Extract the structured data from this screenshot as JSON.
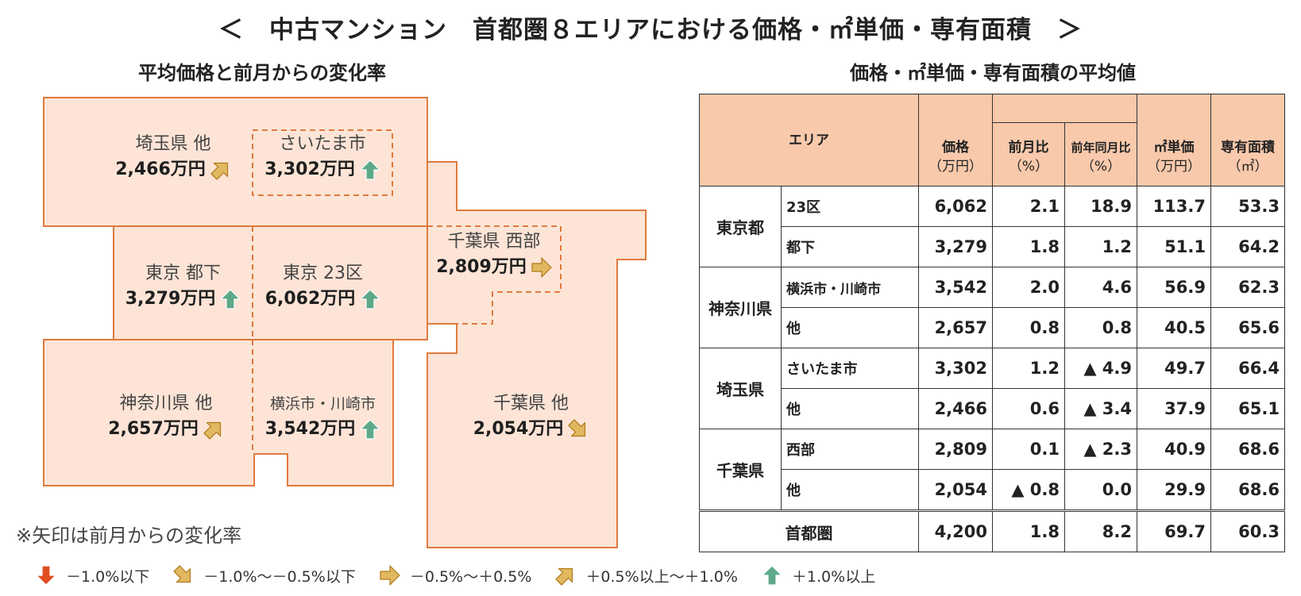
{
  "title": "＜　中古マンション　首都圏８エリアにおける価格・㎡単価・専有面積　＞",
  "map_subtitle": "平均価格と前月からの変化率",
  "table_subtitle": "価格・㎡単価・専有面積の平均値",
  "colors": {
    "region_fill": "#fde4d6",
    "region_border": "#e07a3e",
    "header_fill": "#f8c9ab",
    "arrow_down": "#e04d1f",
    "arrow_down_slight": "#e0b860",
    "arrow_flat": "#e0b860",
    "arrow_up_slight": "#e0b860",
    "arrow_up": "#5ea98a"
  },
  "map": {
    "regions": [
      {
        "key": "saitama_other",
        "area": "埼玉県 他",
        "price": "2,466万円",
        "trend": "up-slight"
      },
      {
        "key": "saitama_city",
        "area": "さいたま市",
        "price": "3,302万円",
        "trend": "up"
      },
      {
        "key": "tokyo_other",
        "area": "東京 都下",
        "price": "3,279万円",
        "trend": "up"
      },
      {
        "key": "tokyo_23",
        "area": "東京 23区",
        "price": "6,062万円",
        "trend": "up"
      },
      {
        "key": "chiba_west",
        "area": "千葉県 西部",
        "price": "2,809万円",
        "trend": "flat"
      },
      {
        "key": "kanagawa_other",
        "area": "神奈川県 他",
        "price": "2,657万円",
        "trend": "up-slight"
      },
      {
        "key": "yokohama_kawasaki",
        "area": "横浜市・川崎市",
        "price": "3,542万円",
        "trend": "up"
      },
      {
        "key": "chiba_other",
        "area": "千葉県 他",
        "price": "2,054万円",
        "trend": "down-slight"
      }
    ]
  },
  "table": {
    "headers": {
      "area": "エリア",
      "price": "価格",
      "price_unit": "（万円）",
      "mom": "前月比",
      "mom_unit": "（%）",
      "yoy": "前年同月比",
      "yoy_unit": "（%）",
      "unit_price": "㎡単価",
      "unit_price_unit": "（万円）",
      "floor_area": "専有面積",
      "floor_area_unit": "（㎡）"
    },
    "groups": [
      {
        "pref": "東京都",
        "rows": [
          {
            "sub": "23区",
            "price": "6,062",
            "mom": "2.1",
            "yoy": "18.9",
            "unit_price": "113.7",
            "floor_area": "53.3"
          },
          {
            "sub": "都下",
            "price": "3,279",
            "mom": "1.8",
            "yoy": "1.2",
            "unit_price": "51.1",
            "floor_area": "64.2"
          }
        ]
      },
      {
        "pref": "神奈川県",
        "rows": [
          {
            "sub": "横浜市・川崎市",
            "price": "3,542",
            "mom": "2.0",
            "yoy": "4.6",
            "unit_price": "56.9",
            "floor_area": "62.3"
          },
          {
            "sub": "他",
            "price": "2,657",
            "mom": "0.8",
            "yoy": "0.8",
            "unit_price": "40.5",
            "floor_area": "65.6"
          }
        ]
      },
      {
        "pref": "埼玉県",
        "rows": [
          {
            "sub": "さいたま市",
            "price": "3,302",
            "mom": "1.2",
            "yoy": "▲ 4.9",
            "unit_price": "49.7",
            "floor_area": "66.4"
          },
          {
            "sub": "他",
            "price": "2,466",
            "mom": "0.6",
            "yoy": "▲ 3.4",
            "unit_price": "37.9",
            "floor_area": "65.1"
          }
        ]
      },
      {
        "pref": "千葉県",
        "rows": [
          {
            "sub": "西部",
            "price": "2,809",
            "mom": "0.1",
            "yoy": "▲ 2.3",
            "unit_price": "40.9",
            "floor_area": "68.6"
          },
          {
            "sub": "他",
            "price": "2,054",
            "mom": "▲ 0.8",
            "yoy": "0.0",
            "unit_price": "29.9",
            "floor_area": "68.6"
          }
        ]
      }
    ],
    "total": {
      "label": "首都圏",
      "price": "4,200",
      "mom": "1.8",
      "yoy": "8.2",
      "unit_price": "69.7",
      "floor_area": "60.3"
    }
  },
  "note": "※矢印は前月からの変化率",
  "legend": [
    {
      "trend": "down",
      "label": "－1.0%以下"
    },
    {
      "trend": "down-slight",
      "label": "－1.0%～－0.5%以下"
    },
    {
      "trend": "flat",
      "label": "－0.5%～＋0.5%"
    },
    {
      "trend": "up-slight",
      "label": "＋0.5%以上～＋1.0%"
    },
    {
      "trend": "up",
      "label": "＋1.0%以上"
    }
  ],
  "chart_data": {
    "type": "table",
    "title": "＜　中古マンション　首都圏８エリアにおける価格・㎡単価・専有面積　＞",
    "columns": [
      "価格（万円）",
      "前月比（%）",
      "前年同月比（%）",
      "㎡単価（万円）",
      "専有面積（㎡）"
    ],
    "rows": [
      {
        "area": "東京都 23区",
        "values": [
          6062,
          2.1,
          18.9,
          113.7,
          53.3
        ]
      },
      {
        "area": "東京都 都下",
        "values": [
          3279,
          1.8,
          1.2,
          51.1,
          64.2
        ]
      },
      {
        "area": "神奈川県 横浜市・川崎市",
        "values": [
          3542,
          2.0,
          4.6,
          56.9,
          62.3
        ]
      },
      {
        "area": "神奈川県 他",
        "values": [
          2657,
          0.8,
          0.8,
          40.5,
          65.6
        ]
      },
      {
        "area": "埼玉県 さいたま市",
        "values": [
          3302,
          1.2,
          -4.9,
          49.7,
          66.4
        ]
      },
      {
        "area": "埼玉県 他",
        "values": [
          2466,
          0.6,
          -3.4,
          37.9,
          65.1
        ]
      },
      {
        "area": "千葉県 西部",
        "values": [
          2809,
          0.1,
          -2.3,
          40.9,
          68.6
        ]
      },
      {
        "area": "千葉県 他",
        "values": [
          2054,
          -0.8,
          0.0,
          29.9,
          68.6
        ]
      },
      {
        "area": "首都圏",
        "values": [
          4200,
          1.8,
          8.2,
          69.7,
          60.3
        ]
      }
    ]
  }
}
